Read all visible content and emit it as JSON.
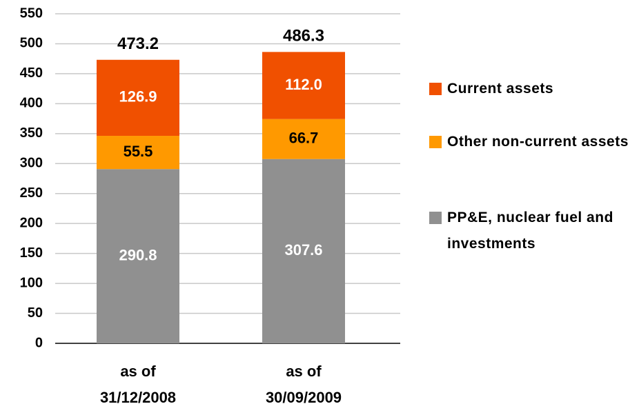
{
  "chart_data": {
    "type": "stacked_bar",
    "categories": [
      "as of 31/12/2008",
      "as of 30/09/2009"
    ],
    "series": [
      {
        "name": "PP&E, nuclear fuel and investments",
        "color": "#909090",
        "label_color": "#ffffff",
        "values": [
          290.8,
          307.6
        ]
      },
      {
        "name": "Other non-current assets",
        "color": "#ff9900",
        "label_color": "#000000",
        "values": [
          55.5,
          66.7
        ]
      },
      {
        "name": "Current assets",
        "color": "#f05000",
        "label_color": "#ffffff",
        "values": [
          126.9,
          112.0
        ],
        "value_labels": [
          "126.9",
          "112.0"
        ]
      }
    ],
    "totals": [
      473.2,
      486.3
    ],
    "ylim": [
      0,
      550
    ],
    "yticks": [
      0,
      50,
      100,
      150,
      200,
      250,
      300,
      350,
      400,
      450,
      500,
      550
    ],
    "grid": true,
    "legend": "right"
  }
}
